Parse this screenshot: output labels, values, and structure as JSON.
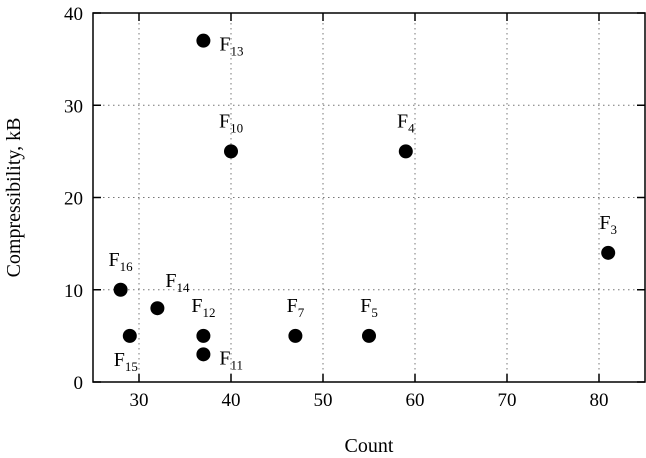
{
  "chart_data": {
    "type": "scatter",
    "title": "",
    "xlabel": "Count",
    "ylabel": "Compressibility, kB",
    "xlim": [
      25,
      85
    ],
    "ylim": [
      0,
      40
    ],
    "xticks": [
      30,
      40,
      50,
      60,
      70,
      80
    ],
    "yticks": [
      0,
      10,
      20,
      30,
      40
    ],
    "grid": true,
    "legend": "none",
    "points": [
      {
        "label": "F",
        "sub": "13",
        "x": 37,
        "y": 37,
        "label_pos": "right"
      },
      {
        "label": "F",
        "sub": "10",
        "x": 40,
        "y": 25,
        "label_pos": "above"
      },
      {
        "label": "F",
        "sub": "4",
        "x": 59,
        "y": 25,
        "label_pos": "above"
      },
      {
        "label": "F",
        "sub": "3",
        "x": 81,
        "y": 14,
        "label_pos": "above"
      },
      {
        "label": "F",
        "sub": "16",
        "x": 28,
        "y": 10,
        "label_pos": "above"
      },
      {
        "label": "F",
        "sub": "14",
        "x": 32,
        "y": 8,
        "label_pos": "above-right"
      },
      {
        "label": "F",
        "sub": "12",
        "x": 37,
        "y": 5,
        "label_pos": "above"
      },
      {
        "label": "F",
        "sub": "7",
        "x": 47,
        "y": 5,
        "label_pos": "above"
      },
      {
        "label": "F",
        "sub": "5",
        "x": 55,
        "y": 5,
        "label_pos": "above"
      },
      {
        "label": "F",
        "sub": "15",
        "x": 29,
        "y": 5,
        "label_pos": "below-left"
      },
      {
        "label": "F",
        "sub": "11",
        "x": 37,
        "y": 3,
        "label_pos": "right"
      }
    ]
  }
}
